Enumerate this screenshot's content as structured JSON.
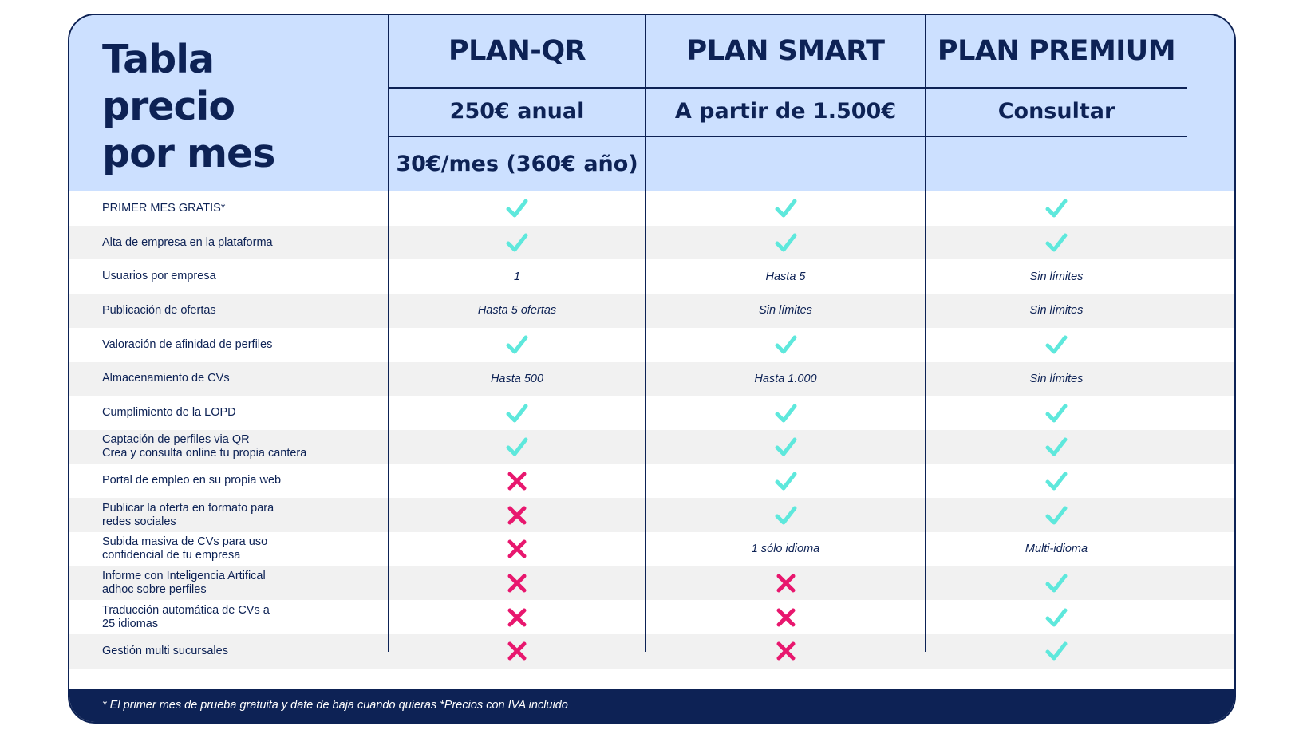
{
  "title": [
    "Tabla",
    "precio",
    "por mes"
  ],
  "plans": [
    {
      "name": "PLAN-QR",
      "price": "250€ anual",
      "price2": "30€/mes (360€ año)"
    },
    {
      "name": "PLAN SMART",
      "price": "A partir de 1.500€",
      "price2": ""
    },
    {
      "name": "PLAN PREMIUM",
      "price": "Consultar",
      "price2": ""
    }
  ],
  "rows": [
    {
      "feature": [
        "PRIMER MES GRATIS*"
      ],
      "values": [
        "check",
        "check",
        "check"
      ]
    },
    {
      "feature": [
        "Alta de empresa en la plataforma"
      ],
      "values": [
        "check",
        "check",
        "check"
      ]
    },
    {
      "feature": [
        "Usuarios por empresa"
      ],
      "values": [
        "1",
        "Hasta 5",
        "Sin límites"
      ]
    },
    {
      "feature": [
        "Publicación de ofertas"
      ],
      "values": [
        "Hasta 5 ofertas",
        "Sin límites",
        "Sin límites"
      ]
    },
    {
      "feature": [
        "Valoración de afinidad de perfiles"
      ],
      "values": [
        "check",
        "check",
        "check"
      ]
    },
    {
      "feature": [
        "Almacenamiento de CVs"
      ],
      "values": [
        "Hasta 500",
        "Hasta 1.000",
        "Sin límites"
      ]
    },
    {
      "feature": [
        "Cumplimiento de la LOPD"
      ],
      "values": [
        "check",
        "check",
        "check"
      ]
    },
    {
      "feature": [
        "Captación de perfiles via QR",
        "Crea y consulta online tu propia cantera"
      ],
      "values": [
        "check",
        "check",
        "check"
      ]
    },
    {
      "feature": [
        "Portal de empleo en su propia web"
      ],
      "values": [
        "cross",
        "check",
        "check"
      ]
    },
    {
      "feature": [
        "Publicar la oferta en formato para",
        "redes sociales"
      ],
      "values": [
        "cross",
        "check",
        "check"
      ]
    },
    {
      "feature": [
        "Subida masiva de CVs para uso",
        "confidencial de tu empresa"
      ],
      "values": [
        "cross",
        "1 sólo idioma",
        "Multi-idioma"
      ]
    },
    {
      "feature": [
        "Informe con Inteligencia Artifical",
        "adhoc sobre perfiles"
      ],
      "values": [
        "cross",
        "cross",
        "check"
      ]
    },
    {
      "feature": [
        "Traducción automática de CVs a",
        "25 idiomas"
      ],
      "values": [
        "cross",
        "cross",
        "check"
      ]
    },
    {
      "feature": [
        "Gestión multi sucursales"
      ],
      "values": [
        "cross",
        "cross",
        "check"
      ]
    }
  ],
  "footer": "* El primer mes de prueba gratuita y date de baja cuando quieras *Precios con IVA incluido",
  "colors": {
    "navy": "#0d2255",
    "header_bg": "#cce0ff",
    "check": "#5ee8dc",
    "cross": "#e8176e",
    "row_alt": "#f1f1f1"
  },
  "icons": {
    "check": "check-icon",
    "cross": "cross-icon"
  }
}
